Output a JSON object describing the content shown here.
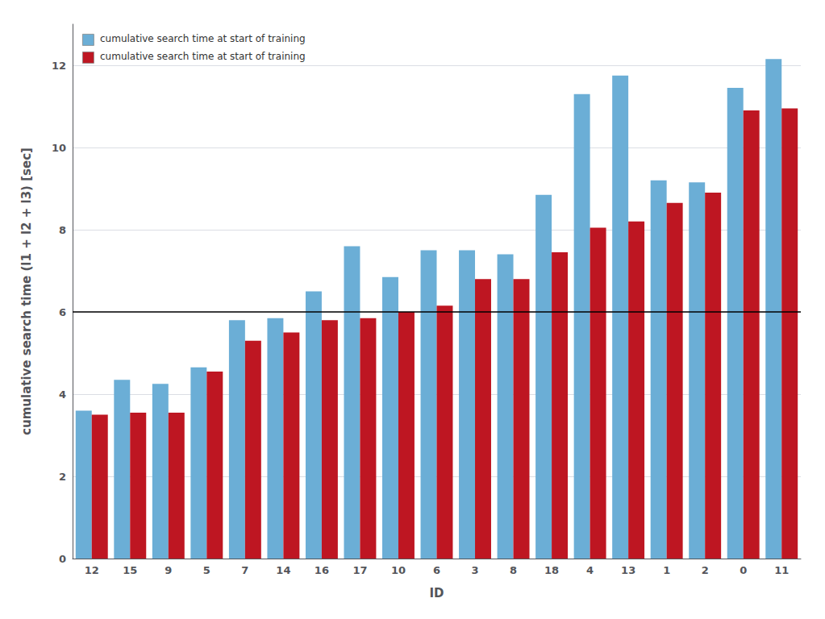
{
  "chart_data": {
    "type": "bar",
    "categories": [
      "12",
      "15",
      "9",
      "5",
      "7",
      "14",
      "16",
      "17",
      "10",
      "6",
      "3",
      "8",
      "18",
      "4",
      "13",
      "1",
      "2",
      "0",
      "11"
    ],
    "series": [
      {
        "name": "cumulative search time at start of training",
        "color": "#6baed6",
        "values": [
          3.6,
          4.35,
          4.25,
          4.65,
          5.8,
          5.85,
          6.5,
          7.6,
          6.85,
          7.5,
          7.5,
          7.4,
          8.85,
          11.3,
          11.75,
          9.2,
          9.15,
          11.45,
          12.15
        ]
      },
      {
        "name": "cumulative search time at start of training",
        "color": "#be1622",
        "values": [
          3.5,
          3.55,
          3.55,
          4.55,
          5.3,
          5.5,
          5.8,
          5.85,
          6.0,
          6.15,
          6.8,
          6.8,
          7.45,
          8.05,
          8.2,
          8.65,
          8.9,
          10.9,
          10.95
        ]
      }
    ],
    "xlabel": "ID",
    "ylabel": "cumulative search time (l1 + l2 + l3) [sec]",
    "ylim": [
      0,
      13
    ],
    "yticks": [
      0,
      2,
      4,
      6,
      8,
      10,
      12
    ],
    "grid": true,
    "legend": "upper left",
    "hline": {
      "value": 6.0,
      "color": "#000000"
    }
  }
}
